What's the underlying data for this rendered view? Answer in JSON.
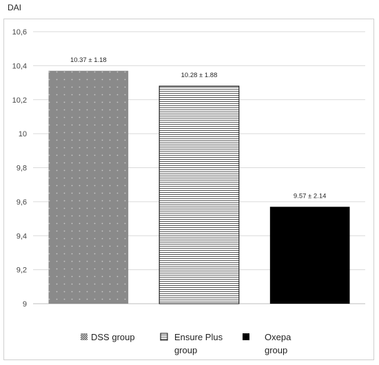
{
  "chart_data": {
    "type": "bar",
    "ylabel": "DAI",
    "ylim": [
      9,
      10.6
    ],
    "yticks": [
      "9",
      "9,2",
      "9,4",
      "9,6",
      "9,8",
      "10",
      "10,2",
      "10,4",
      "10,6"
    ],
    "ytick_values": [
      9,
      9.2,
      9.4,
      9.6,
      9.8,
      10,
      10.2,
      10.4,
      10.6
    ],
    "grid": true,
    "legend_position": "bottom",
    "series": [
      {
        "name": "DSS group",
        "value": 10.37,
        "label": "10.37 ± 1.18",
        "pattern": "dots",
        "color": "#8a8a8a"
      },
      {
        "name": "Ensure Plus group",
        "value": 10.28,
        "label": "10.28 ± 1.88",
        "pattern": "hlines",
        "color": "#ffffff"
      },
      {
        "name": "Oxepa group",
        "value": 9.57,
        "label": "9.57 ± 2.14",
        "pattern": "solid",
        "color": "#000000"
      }
    ],
    "legend_lines": [
      [
        "DSS group"
      ],
      [
        "Ensure Plus",
        "group"
      ],
      [
        "Oxepa",
        "group"
      ]
    ]
  }
}
